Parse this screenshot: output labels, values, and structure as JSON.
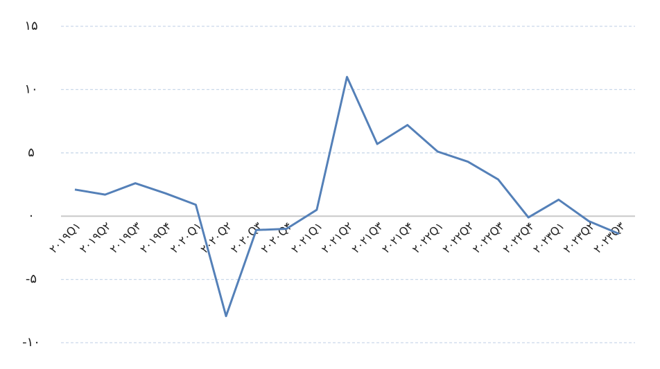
{
  "chart_data": {
    "type": "line",
    "categories": [
      "۲۰۱۹Q۱",
      "۲۰۱۹Q۲",
      "۲۰۱۹Q۳",
      "۲۰۱۹Q۴",
      "۲۰۲۰Q۱",
      "۲۰۲۰Q۲",
      "۲۰۲۰Q۳",
      "۲۰۲۰Q۴",
      "۲۰۲۱Q۱",
      "۲۰۲۱Q۲",
      "۲۰۲۱Q۳",
      "۲۰۲۱Q۴",
      "۲۰۲۲Q۱",
      "۲۰۲۲Q۲",
      "۲۰۲۲Q۳",
      "۲۰۲۲Q۴",
      "۲۰۲۳Q۱",
      "۲۰۲۳Q۲",
      "۲۰۲۳Q۳"
    ],
    "values": [
      2.1,
      1.7,
      2.6,
      1.8,
      0.9,
      -7.9,
      -1.1,
      -1.0,
      0.5,
      11.0,
      5.7,
      7.2,
      5.1,
      4.3,
      2.9,
      -0.1,
      1.3,
      -0.4,
      -1.4
    ],
    "color": "#5480b8",
    "ylim": [
      -10,
      15
    ],
    "yticks": [
      {
        "value": -10,
        "label": "-۱۰"
      },
      {
        "value": -5,
        "label": "-۵"
      },
      {
        "value": 0,
        "label": "۰"
      },
      {
        "value": 5,
        "label": "۵"
      },
      {
        "value": 10,
        "label": "۱۰"
      },
      {
        "value": 15,
        "label": "۱۵"
      }
    ],
    "grid": true
  }
}
